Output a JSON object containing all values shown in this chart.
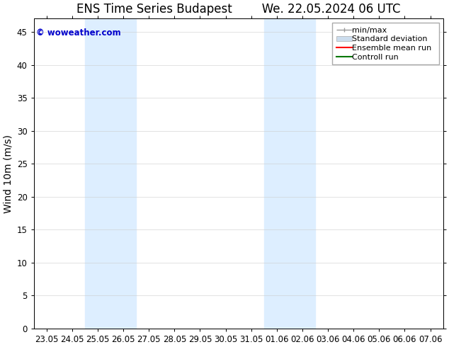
{
  "title_left": "ENS Time Series Budapest",
  "title_right": "We. 22.05.2024 06 UTC",
  "ylabel": "Wind 10m (m/s)",
  "watermark": "© woweather.com",
  "watermark_color": "#0000cc",
  "ylim": [
    0,
    47
  ],
  "yticks": [
    0,
    5,
    10,
    15,
    20,
    25,
    30,
    35,
    40,
    45
  ],
  "background_color": "#ffffff",
  "shaded_bands": [
    {
      "xstart": 2,
      "xend": 4
    },
    {
      "xstart": 9,
      "xend": 10
    },
    {
      "xstart": 10,
      "xend": 11
    }
  ],
  "shaded_color": "#ddeeff",
  "legend_entries": [
    {
      "label": "min/max",
      "type": "minmax",
      "color": "#999999"
    },
    {
      "label": "Standard deviation",
      "type": "patch",
      "color": "#ccddee"
    },
    {
      "label": "Ensemble mean run",
      "type": "line",
      "color": "#ff0000"
    },
    {
      "label": "Controll run",
      "type": "line",
      "color": "#007700"
    }
  ],
  "x_tick_labels": [
    "23.05",
    "24.05",
    "25.05",
    "26.05",
    "27.05",
    "28.05",
    "29.05",
    "30.05",
    "31.05",
    "01.06",
    "02.06",
    "03.06",
    "04.06",
    "05.06",
    "06.06",
    "07.06"
  ],
  "title_fontsize": 12,
  "axis_fontsize": 10,
  "tick_fontsize": 8.5,
  "legend_fontsize": 8,
  "watermark_fontsize": 8.5
}
